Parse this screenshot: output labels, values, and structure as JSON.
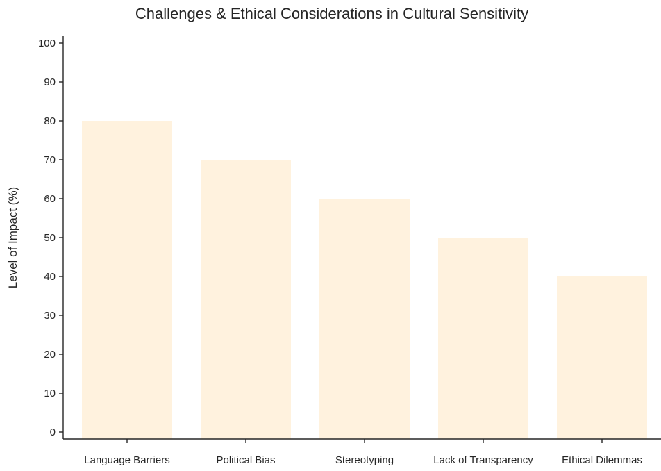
{
  "chart_data": {
    "type": "bar",
    "title": "Challenges & Ethical Considerations in Cultural Sensitivity",
    "xlabel": "",
    "ylabel": "Level of Impact (%)",
    "categories": [
      "Language Barriers",
      "Political Bias",
      "Stereotyping",
      "Lack of Transparency",
      "Ethical Dilemmas"
    ],
    "values": [
      80,
      70,
      60,
      50,
      40
    ],
    "ylim": [
      0,
      100
    ],
    "yticks": [
      0,
      10,
      20,
      30,
      40,
      50,
      60,
      70,
      80,
      90,
      100
    ],
    "bar_color": "#fff2de",
    "axis_color": "#262626",
    "grid": false,
    "legend": "none"
  }
}
